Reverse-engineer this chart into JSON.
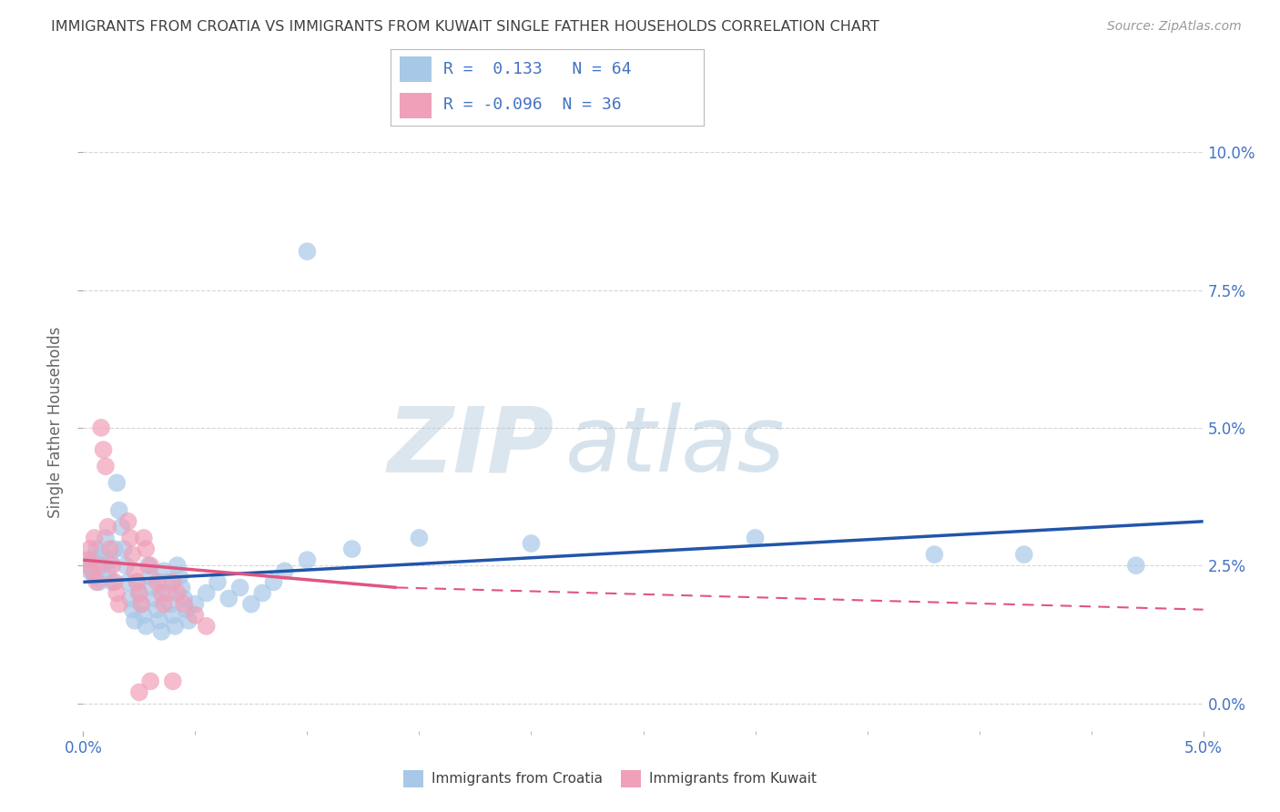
{
  "title": "IMMIGRANTS FROM CROATIA VS IMMIGRANTS FROM KUWAIT SINGLE FATHER HOUSEHOLDS CORRELATION CHART",
  "source": "Source: ZipAtlas.com",
  "ylabel": "Single Father Households",
  "right_ytick_vals": [
    0.0,
    0.025,
    0.05,
    0.075,
    0.1
  ],
  "xlim": [
    0.0,
    0.05
  ],
  "ylim": [
    -0.005,
    0.107
  ],
  "croatia_color": "#a8c8e8",
  "kuwait_color": "#f0a0b8",
  "croatia_line_color": "#2255aa",
  "kuwait_line_color": "#e05580",
  "croatia_R": 0.133,
  "croatia_N": 64,
  "kuwait_R": -0.096,
  "kuwait_N": 36,
  "croatia_scatter": [
    [
      0.0002,
      0.025
    ],
    [
      0.0003,
      0.024
    ],
    [
      0.0004,
      0.026
    ],
    [
      0.0005,
      0.023
    ],
    [
      0.0006,
      0.028
    ],
    [
      0.0007,
      0.022
    ],
    [
      0.0008,
      0.027
    ],
    [
      0.0009,
      0.025
    ],
    [
      0.001,
      0.03
    ],
    [
      0.0011,
      0.024
    ],
    [
      0.0012,
      0.026
    ],
    [
      0.0013,
      0.022
    ],
    [
      0.0014,
      0.028
    ],
    [
      0.0015,
      0.04
    ],
    [
      0.0016,
      0.035
    ],
    [
      0.0017,
      0.032
    ],
    [
      0.0018,
      0.028
    ],
    [
      0.0019,
      0.025
    ],
    [
      0.002,
      0.022
    ],
    [
      0.0021,
      0.019
    ],
    [
      0.0022,
      0.017
    ],
    [
      0.0023,
      0.015
    ],
    [
      0.0024,
      0.022
    ],
    [
      0.0025,
      0.02
    ],
    [
      0.0026,
      0.018
    ],
    [
      0.0027,
      0.016
    ],
    [
      0.0028,
      0.014
    ],
    [
      0.0029,
      0.025
    ],
    [
      0.003,
      0.023
    ],
    [
      0.0031,
      0.021
    ],
    [
      0.0032,
      0.019
    ],
    [
      0.0033,
      0.017
    ],
    [
      0.0034,
      0.015
    ],
    [
      0.0035,
      0.013
    ],
    [
      0.0036,
      0.024
    ],
    [
      0.0037,
      0.022
    ],
    [
      0.0038,
      0.02
    ],
    [
      0.0039,
      0.018
    ],
    [
      0.004,
      0.016
    ],
    [
      0.0041,
      0.014
    ],
    [
      0.0042,
      0.025
    ],
    [
      0.0043,
      0.023
    ],
    [
      0.0044,
      0.021
    ],
    [
      0.0045,
      0.019
    ],
    [
      0.0046,
      0.017
    ],
    [
      0.0047,
      0.015
    ],
    [
      0.005,
      0.018
    ],
    [
      0.0055,
      0.02
    ],
    [
      0.006,
      0.022
    ],
    [
      0.0065,
      0.019
    ],
    [
      0.007,
      0.021
    ],
    [
      0.0075,
      0.018
    ],
    [
      0.008,
      0.02
    ],
    [
      0.0085,
      0.022
    ],
    [
      0.009,
      0.024
    ],
    [
      0.01,
      0.026
    ],
    [
      0.012,
      0.028
    ],
    [
      0.015,
      0.03
    ],
    [
      0.02,
      0.029
    ],
    [
      0.03,
      0.03
    ],
    [
      0.038,
      0.027
    ],
    [
      0.042,
      0.027
    ],
    [
      0.01,
      0.082
    ],
    [
      0.047,
      0.025
    ]
  ],
  "kuwait_scatter": [
    [
      0.0002,
      0.026
    ],
    [
      0.0003,
      0.028
    ],
    [
      0.0004,
      0.024
    ],
    [
      0.0005,
      0.03
    ],
    [
      0.0006,
      0.022
    ],
    [
      0.0007,
      0.025
    ],
    [
      0.0008,
      0.05
    ],
    [
      0.0009,
      0.046
    ],
    [
      0.001,
      0.043
    ],
    [
      0.0011,
      0.032
    ],
    [
      0.0012,
      0.028
    ],
    [
      0.0013,
      0.025
    ],
    [
      0.0014,
      0.022
    ],
    [
      0.0015,
      0.02
    ],
    [
      0.0016,
      0.018
    ],
    [
      0.002,
      0.033
    ],
    [
      0.0021,
      0.03
    ],
    [
      0.0022,
      0.027
    ],
    [
      0.0023,
      0.024
    ],
    [
      0.0024,
      0.022
    ],
    [
      0.0025,
      0.02
    ],
    [
      0.0026,
      0.018
    ],
    [
      0.0027,
      0.03
    ],
    [
      0.0028,
      0.028
    ],
    [
      0.003,
      0.025
    ],
    [
      0.0033,
      0.022
    ],
    [
      0.0035,
      0.02
    ],
    [
      0.0036,
      0.018
    ],
    [
      0.004,
      0.022
    ],
    [
      0.0042,
      0.02
    ],
    [
      0.0045,
      0.018
    ],
    [
      0.005,
      0.016
    ],
    [
      0.0055,
      0.014
    ],
    [
      0.003,
      0.004
    ],
    [
      0.004,
      0.004
    ],
    [
      0.0025,
      0.002
    ]
  ],
  "watermark_zip": "ZIP",
  "watermark_atlas": "atlas",
  "background_color": "#ffffff",
  "grid_color": "#cccccc",
  "title_color": "#404040",
  "axis_color": "#4472c4",
  "legend_label_croatia": "Immigrants from Croatia",
  "legend_label_kuwait": "Immigrants from Kuwait"
}
